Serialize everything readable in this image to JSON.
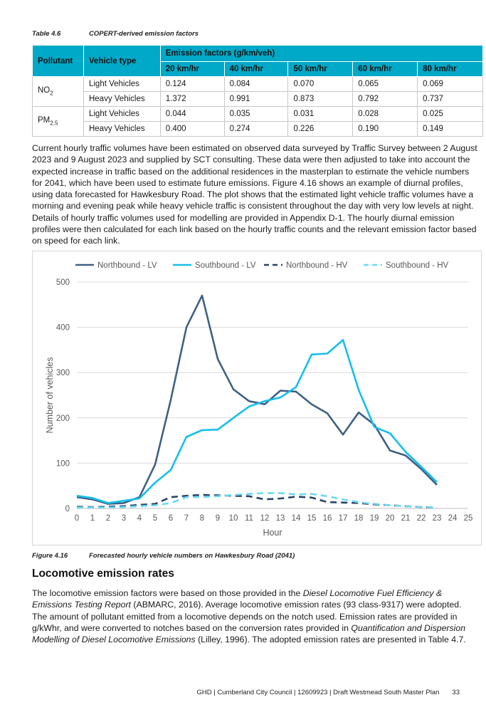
{
  "table": {
    "caption_number": "Table 4.6",
    "caption_title": "COPERT-derived emission factors",
    "headers": {
      "pollutant": "Pollutant",
      "vehicle_type": "Vehicle type",
      "group": "Emission factors (g/km/veh)"
    },
    "speeds": [
      "20 km/hr",
      "40 km/hr",
      "50 km/hr",
      "60 km/hr",
      "80 km/hr"
    ],
    "rows": [
      {
        "pollutant": "NO",
        "pollutant_sub": "2",
        "vehicle": "Light Vehicles",
        "values": [
          "0.124",
          "0.084",
          "0.070",
          "0.065",
          "0.069"
        ]
      },
      {
        "pollutant": "",
        "pollutant_sub": "",
        "vehicle": "Heavy Vehicles",
        "values": [
          "1.372",
          "0.991",
          "0.873",
          "0.792",
          "0.737"
        ]
      },
      {
        "pollutant": "PM",
        "pollutant_sub": "2.5",
        "vehicle": "Light Vehicles",
        "values": [
          "0.044",
          "0.035",
          "0.031",
          "0.028",
          "0.025"
        ]
      },
      {
        "pollutant": "",
        "pollutant_sub": "",
        "vehicle": "Heavy Vehicles",
        "values": [
          "0.400",
          "0.274",
          "0.226",
          "0.190",
          "0.149"
        ]
      }
    ]
  },
  "paragraph1": "Current hourly traffic volumes have been estimated on observed data surveyed by Traffic Survey between 2 August 2023 and 9 August 2023 and supplied by SCT consulting. These data were then adjusted to take into account the expected increase in traffic based on the additional residences in the masterplan to estimate the vehicle numbers for 2041, which have been used to estimate future emissions. Figure 4.16 shows an example of diurnal profiles, using data forecasted for Hawkesbury Road. The plot shows that the estimated light vehicle traffic volumes have a morning and evening peak while heavy vehicle traffic is consistent throughout the day with very low levels at night. Details of hourly traffic volumes used for modelling are provided in Appendix D-1. The hourly diurnal emission profiles were then calculated for each link based on the hourly traffic counts and the relevant emission factor based on speed for each link.",
  "chart_data": {
    "type": "line",
    "xlabel": "Hour",
    "ylabel": "Number of vehicles",
    "x": [
      0,
      1,
      2,
      3,
      4,
      5,
      6,
      7,
      8,
      9,
      10,
      11,
      12,
      13,
      14,
      15,
      16,
      17,
      18,
      19,
      20,
      21,
      22,
      23
    ],
    "xlim": [
      0,
      25
    ],
    "xticks": [
      "0",
      "1",
      "2",
      "3",
      "4",
      "5",
      "6",
      "7",
      "8",
      "9",
      "10",
      "11",
      "12",
      "13",
      "14",
      "15",
      "16",
      "17",
      "18",
      "19",
      "20",
      "21",
      "22",
      "23",
      "24",
      "25"
    ],
    "ylim": [
      0,
      500
    ],
    "yticks": [
      "0",
      "100",
      "200",
      "300",
      "400",
      "500"
    ],
    "grid": "horizontal",
    "legend": "top",
    "series": [
      {
        "name": "Northbound - LV",
        "color": "#3f6184",
        "dash": false,
        "values": [
          25,
          20,
          10,
          12,
          25,
          97,
          240,
          400,
          470,
          330,
          263,
          237,
          230,
          260,
          258,
          230,
          210,
          163,
          212,
          185,
          128,
          117,
          87,
          52
        ]
      },
      {
        "name": "Southbound - LV",
        "color": "#17bfea",
        "dash": false,
        "values": [
          28,
          23,
          12,
          17,
          22,
          57,
          85,
          158,
          173,
          174,
          200,
          225,
          237,
          245,
          268,
          340,
          342,
          372,
          262,
          180,
          166,
          125,
          92,
          58
        ]
      },
      {
        "name": "Northbound - HV",
        "color": "#2a4366",
        "dash": true,
        "values": [
          4,
          3,
          4,
          5,
          8,
          10,
          25,
          28,
          30,
          29,
          28,
          27,
          20,
          22,
          26,
          24,
          14,
          13,
          12,
          9,
          7,
          5,
          3,
          2
        ]
      },
      {
        "name": "Southbound - HV",
        "color": "#6dd9f2",
        "dash": true,
        "values": [
          2,
          2,
          2,
          3,
          5,
          7,
          12,
          25,
          25,
          27,
          30,
          32,
          34,
          34,
          31,
          32,
          27,
          20,
          14,
          10,
          7,
          5,
          3,
          2
        ]
      }
    ]
  },
  "figure": {
    "number": "Figure 4.16",
    "title": "Forecasted hourly vehicle numbers on Hawkesbury Road (2041)"
  },
  "section_heading": "Locomotive emission rates",
  "paragraph2": {
    "p1": "The locomotive emission factors were based on those provided in the ",
    "i1": "Diesel Locomotive Fuel Efficiency & Emissions Testing Report",
    "p2": " (ABMARC, 2016). Average locomotive emission rates (93 class-9317) were adopted. The amount of pollutant emitted from a locomotive depends on the notch used. Emission rates are provided in g/kWhr, and were converted to notches based on the conversion rates provided in ",
    "i2": "Quantification and Dispersion Modelling of Diesel Locomotive Emissions",
    "p3": " (Lilley, 1996). The adopted emission rates are presented in Table 4.7."
  },
  "footer": {
    "text": "GHD | Cumberland City Council | 12609923 | Draft Westmead South Master Plan",
    "page": "33"
  }
}
